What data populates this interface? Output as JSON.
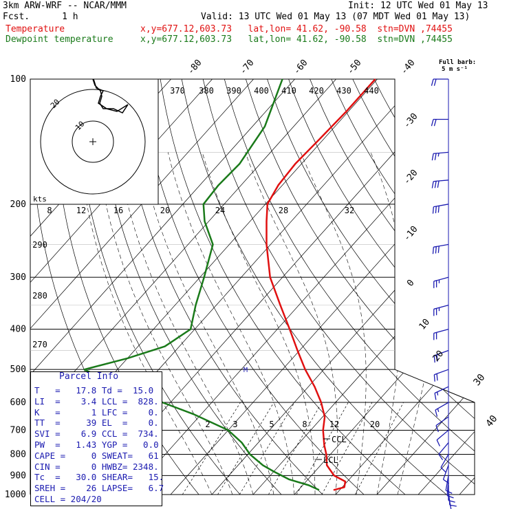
{
  "header": {
    "model_line": "3km ARW-WRF -- NCAR/MMM",
    "init_line": "Init: 12 UTC Wed 01 May 13",
    "fcst_line": "Fcst.      1 h",
    "valid_line": "Valid: 13 UTC Wed 01 May 13 (07 MDT Wed 01 May 13)",
    "temp_line": "Temperature",
    "dew_line": "Dewpoint temperature",
    "loc_line": "x,y=677.12,603.73   lat,lon= 41.62, -90.58  stn=DVN ,74455",
    "barb_label_1": "Full barb:",
    "barb_label_2": "5 m s⁻¹"
  },
  "colors": {
    "temperature": "#e01010",
    "dewpoint": "#1a7a1a",
    "parcel_text": "#1a1ab0",
    "barbs": "#1a1ab0"
  },
  "chart_data": {
    "type": "line",
    "title": "",
    "pressure_levels": [
      100,
      200,
      300,
      400,
      500,
      600,
      700,
      800,
      900,
      1000
    ],
    "pressure_range": [
      100,
      1000
    ],
    "isotherm_labels": [
      "-80",
      "-70",
      "-60",
      "-50",
      "-40",
      "-30",
      "-20",
      "-10",
      "0",
      "10",
      "20",
      "30",
      "40"
    ],
    "theta_labels": [
      "370",
      "380",
      "390",
      "400",
      "410",
      "420",
      "430",
      "440"
    ],
    "theta_left_labels": [
      "290",
      "280",
      "270"
    ],
    "mixing_ratio_labels": [
      "2",
      "3",
      "5",
      "8",
      "12",
      "20"
    ],
    "hodograph_ring_labels": [
      "10",
      "20"
    ],
    "hodograph_speed_label": "kts",
    "hodograph_speed_ticks": [
      "8",
      "12",
      "16",
      "20",
      "24",
      "28",
      "32"
    ],
    "annotations": [
      "CCL",
      "LCL",
      "M"
    ],
    "series": [
      {
        "name": "Temperature",
        "points": [
          [
            975,
            18.5
          ],
          [
            960,
            20.5
          ],
          [
            930,
            19.5
          ],
          [
            900,
            15.5
          ],
          [
            850,
            11.5
          ],
          [
            800,
            9.0
          ],
          [
            760,
            6.5
          ],
          [
            700,
            3.0
          ],
          [
            650,
            0.5
          ],
          [
            600,
            -3.5
          ],
          [
            550,
            -8.5
          ],
          [
            500,
            -14.5
          ],
          [
            450,
            -20.5
          ],
          [
            400,
            -27.0
          ],
          [
            350,
            -34.5
          ],
          [
            300,
            -43.0
          ],
          [
            250,
            -51.0
          ],
          [
            220,
            -56.0
          ],
          [
            200,
            -59.5
          ],
          [
            180,
            -61.0
          ],
          [
            160,
            -61.5
          ],
          [
            140,
            -61.0
          ],
          [
            120,
            -60.5
          ],
          [
            100,
            -60.5
          ]
        ]
      },
      {
        "name": "Dewpoint temperature",
        "points": [
          [
            975,
            15.0
          ],
          [
            950,
            11.5
          ],
          [
            920,
            5.5
          ],
          [
            880,
            0.0
          ],
          [
            850,
            -4.0
          ],
          [
            800,
            -9.5
          ],
          [
            750,
            -14.0
          ],
          [
            700,
            -20.0
          ],
          [
            640,
            -32.0
          ],
          [
            600,
            -42.0
          ],
          [
            540,
            -58.0
          ],
          [
            500,
            -68.0
          ],
          [
            470,
            -60.0
          ],
          [
            440,
            -53.5
          ],
          [
            400,
            -51.0
          ],
          [
            350,
            -55.0
          ],
          [
            300,
            -59.0
          ],
          [
            250,
            -64.0
          ],
          [
            220,
            -71.0
          ],
          [
            200,
            -75.0
          ],
          [
            180,
            -75.5
          ],
          [
            160,
            -75.0
          ],
          [
            130,
            -77.0
          ],
          [
            100,
            -83.0
          ]
        ]
      }
    ],
    "wind_barbs": [
      [
        1000,
        170,
        5
      ],
      [
        975,
        175,
        8
      ],
      [
        950,
        180,
        10
      ],
      [
        925,
        185,
        10
      ],
      [
        900,
        190,
        12
      ],
      [
        850,
        200,
        10
      ],
      [
        800,
        210,
        8
      ],
      [
        750,
        220,
        8
      ],
      [
        700,
        230,
        10
      ],
      [
        650,
        235,
        12
      ],
      [
        600,
        240,
        15
      ],
      [
        550,
        245,
        15
      ],
      [
        500,
        250,
        18
      ],
      [
        450,
        250,
        20
      ],
      [
        400,
        255,
        22
      ],
      [
        350,
        255,
        25
      ],
      [
        300,
        255,
        25
      ],
      [
        250,
        260,
        28
      ],
      [
        200,
        260,
        30
      ],
      [
        175,
        265,
        28
      ],
      [
        150,
        265,
        25
      ],
      [
        125,
        270,
        22
      ],
      [
        100,
        270,
        20
      ]
    ],
    "hodograph": [
      [
        0.0,
        82.0
      ],
      [
        -5.0,
        76.0
      ],
      [
        -8.0,
        70.0
      ],
      [
        -4.0,
        62.0
      ],
      [
        4.0,
        57.0
      ],
      [
        10.0,
        56.0
      ],
      [
        12.0,
        54.0
      ]
    ]
  },
  "parcel": {
    "title": "Parcel Info",
    "rows": [
      "T   =   17.8 Td =  15.0",
      "LI  =    3.4 LCL =  828.",
      "K   =      1 LFC =    0.",
      "TT  =     39 EL  =    0.",
      "SVI =    6.9 CCL =  734.",
      "PW  =   1.43 YGP =   0.0",
      "CAPE =     0 SWEAT=   61",
      "CIN =      0 HWBZ= 2348.",
      "Tc  =   30.0 SHEAR=   15.",
      "SREH =    26 LAPSE=   6.7",
      "CELL = 204/20"
    ]
  }
}
